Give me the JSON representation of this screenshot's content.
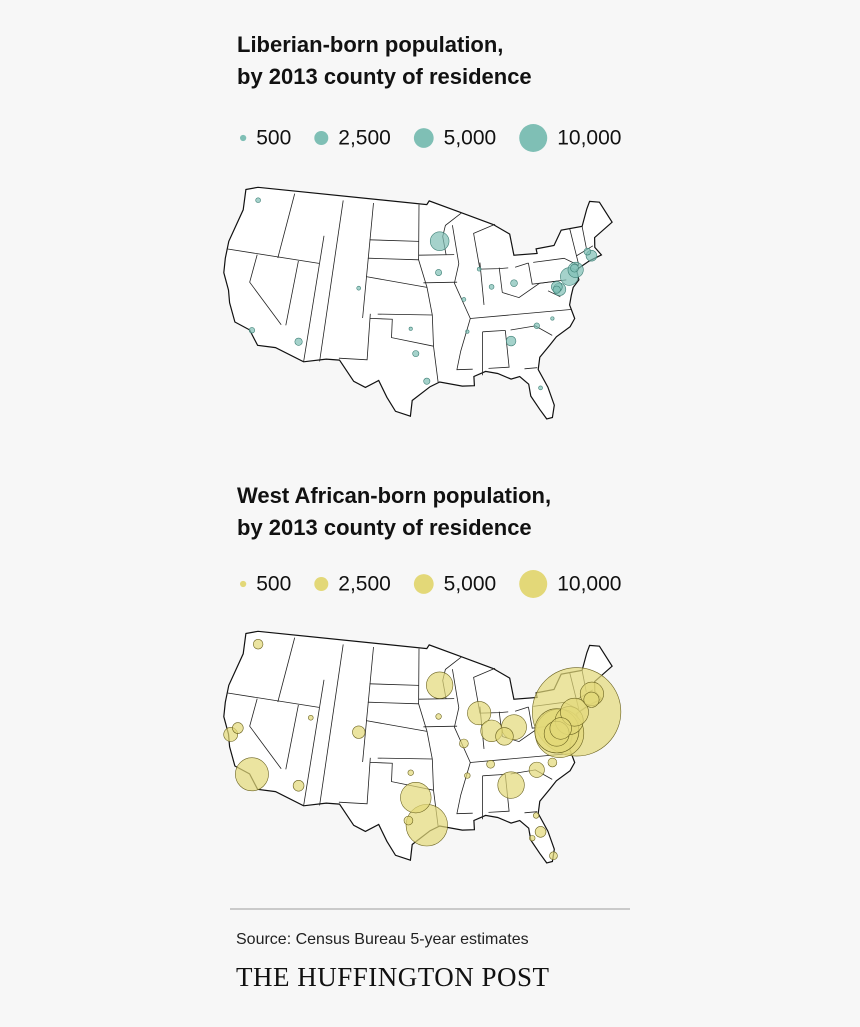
{
  "maps": [
    {
      "title_lines": [
        "Liberian-born population,",
        "by 2013 county of residence"
      ],
      "color": "#7fbfb5",
      "stroke": "#3d7f75",
      "legend": [
        500,
        {
          "value": 2500,
          "label": "2,500"
        },
        {
          "value": 5000,
          "label": "5,000"
        },
        {
          "value": 10000,
          "label": "10,000"
        }
      ],
      "bubbles": [
        {
          "lon": -93.3,
          "lat": 45.0,
          "value": 4500
        },
        {
          "lon": -75.2,
          "lat": 40.0,
          "value": 4000
        },
        {
          "lon": -74.1,
          "lat": 40.6,
          "value": 3000
        },
        {
          "lon": -76.9,
          "lat": 38.8,
          "value": 2000
        },
        {
          "lon": -77.2,
          "lat": 39.1,
          "value": 1500
        },
        {
          "lon": -71.4,
          "lat": 41.8,
          "value": 1500
        },
        {
          "lon": -84.4,
          "lat": 33.8,
          "value": 1200
        },
        {
          "lon": -74.2,
          "lat": 40.8,
          "value": 800
        },
        {
          "lon": -112.0,
          "lat": 33.4,
          "value": 700
        },
        {
          "lon": -77.3,
          "lat": 38.8,
          "value": 700
        },
        {
          "lon": -83.0,
          "lat": 40.0,
          "value": 600
        },
        {
          "lon": -71.8,
          "lat": 42.3,
          "value": 600
        },
        {
          "lon": -93.6,
          "lat": 41.6,
          "value": 500
        },
        {
          "lon": -96.8,
          "lat": 32.8,
          "value": 500
        },
        {
          "lon": -95.4,
          "lat": 29.8,
          "value": 500
        },
        {
          "lon": -118.2,
          "lat": 34.0,
          "value": 400
        },
        {
          "lon": -80.8,
          "lat": 35.2,
          "value": 400
        },
        {
          "lon": -122.3,
          "lat": 47.6,
          "value": 300
        },
        {
          "lon": -86.2,
          "lat": 39.8,
          "value": 300
        },
        {
          "lon": -90.2,
          "lat": 38.6,
          "value": 200
        },
        {
          "lon": -104.9,
          "lat": 39.7,
          "value": 200
        },
        {
          "lon": -81.4,
          "lat": 28.5,
          "value": 200
        },
        {
          "lon": -87.7,
          "lat": 41.8,
          "value": 200
        },
        {
          "lon": -97.5,
          "lat": 35.5,
          "value": 150
        },
        {
          "lon": -90.0,
          "lat": 35.1,
          "value": 150
        },
        {
          "lon": -78.6,
          "lat": 35.8,
          "value": 150
        }
      ]
    },
    {
      "title_lines": [
        "West African-born population,",
        "by 2013 county of residence"
      ],
      "color": "#e3d878",
      "stroke": "#6b6320",
      "legend": [
        500,
        {
          "value": 2500,
          "label": "2,500"
        },
        {
          "value": 5000,
          "label": "5,000"
        },
        {
          "value": 10000,
          "label": "10,000"
        }
      ],
      "bubbles": [
        {
          "lon": -73.9,
          "lat": 40.8,
          "value": 100000
        },
        {
          "lon": -76.9,
          "lat": 38.8,
          "value": 30000
        },
        {
          "lon": -77.2,
          "lat": 39.1,
          "value": 25000
        },
        {
          "lon": -95.4,
          "lat": 29.8,
          "value": 22000
        },
        {
          "lon": -118.2,
          "lat": 34.0,
          "value": 14000
        },
        {
          "lon": -96.8,
          "lat": 32.8,
          "value": 12000
        },
        {
          "lon": -75.2,
          "lat": 40.0,
          "value": 10000
        },
        {
          "lon": -74.2,
          "lat": 40.8,
          "value": 10000
        },
        {
          "lon": -93.3,
          "lat": 45.0,
          "value": 9000
        },
        {
          "lon": -84.4,
          "lat": 33.8,
          "value": 9000
        },
        {
          "lon": -77.3,
          "lat": 38.8,
          "value": 8000
        },
        {
          "lon": -83.0,
          "lat": 40.0,
          "value": 8000
        },
        {
          "lon": -87.7,
          "lat": 41.8,
          "value": 7000
        },
        {
          "lon": -71.1,
          "lat": 42.4,
          "value": 7000
        },
        {
          "lon": -76.6,
          "lat": 39.3,
          "value": 6000
        },
        {
          "lon": -86.2,
          "lat": 39.8,
          "value": 6000
        },
        {
          "lon": -84.5,
          "lat": 39.1,
          "value": 4000
        },
        {
          "lon": -71.4,
          "lat": 41.8,
          "value": 3000
        },
        {
          "lon": -80.8,
          "lat": 35.2,
          "value": 3000
        },
        {
          "lon": -122.2,
          "lat": 37.8,
          "value": 2500
        },
        {
          "lon": -104.9,
          "lat": 39.7,
          "value": 2000
        },
        {
          "lon": -121.5,
          "lat": 38.6,
          "value": 1500
        },
        {
          "lon": -81.4,
          "lat": 28.5,
          "value": 1500
        },
        {
          "lon": -112.0,
          "lat": 33.4,
          "value": 1500
        },
        {
          "lon": -122.3,
          "lat": 47.6,
          "value": 1200
        },
        {
          "lon": -90.2,
          "lat": 38.6,
          "value": 1000
        },
        {
          "lon": -78.6,
          "lat": 35.8,
          "value": 1000
        },
        {
          "lon": -97.7,
          "lat": 30.3,
          "value": 1000
        },
        {
          "lon": -80.2,
          "lat": 25.8,
          "value": 800
        },
        {
          "lon": -86.8,
          "lat": 36.2,
          "value": 800
        },
        {
          "lon": -97.5,
          "lat": 35.5,
          "value": 400
        },
        {
          "lon": -90.0,
          "lat": 35.1,
          "value": 400
        },
        {
          "lon": -93.6,
          "lat": 41.6,
          "value": 400
        },
        {
          "lon": -111.9,
          "lat": 40.8,
          "value": 300
        },
        {
          "lon": -82.5,
          "lat": 27.9,
          "value": 400
        },
        {
          "lon": -81.7,
          "lat": 30.3,
          "value": 400
        }
      ]
    }
  ],
  "source": "Source: Census Bureau 5-year estimates",
  "brand": "THE HUFFINGTON POST"
}
